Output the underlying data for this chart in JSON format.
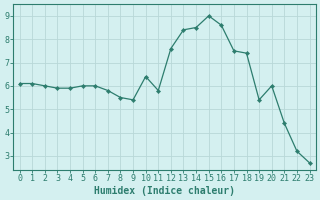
{
  "x": [
    0,
    1,
    2,
    3,
    4,
    5,
    6,
    7,
    8,
    9,
    10,
    11,
    12,
    13,
    14,
    15,
    16,
    17,
    18,
    19,
    20,
    21,
    22,
    23
  ],
  "y": [
    6.1,
    6.1,
    6.0,
    5.9,
    5.9,
    6.0,
    6.0,
    5.8,
    5.5,
    5.4,
    6.4,
    5.8,
    7.6,
    8.4,
    8.5,
    9.0,
    8.6,
    7.5,
    7.4,
    5.4,
    6.0,
    4.4,
    3.2,
    2.7
  ],
  "line_color": "#2d7d6e",
  "marker_color": "#2d7d6e",
  "bg_color": "#d4f0f0",
  "grid_color": "#b8d8d8",
  "xlabel": "Humidex (Indice chaleur)",
  "ylim": [
    2.4,
    9.5
  ],
  "xlim": [
    -0.5,
    23.5
  ],
  "yticks": [
    3,
    4,
    5,
    6,
    7,
    8,
    9
  ],
  "xticks": [
    0,
    1,
    2,
    3,
    4,
    5,
    6,
    7,
    8,
    9,
    10,
    11,
    12,
    13,
    14,
    15,
    16,
    17,
    18,
    19,
    20,
    21,
    22,
    23
  ],
  "font_color": "#2d7d6e",
  "axis_color": "#2d7d6e",
  "tick_labelsize": 6,
  "xlabel_fontsize": 7
}
